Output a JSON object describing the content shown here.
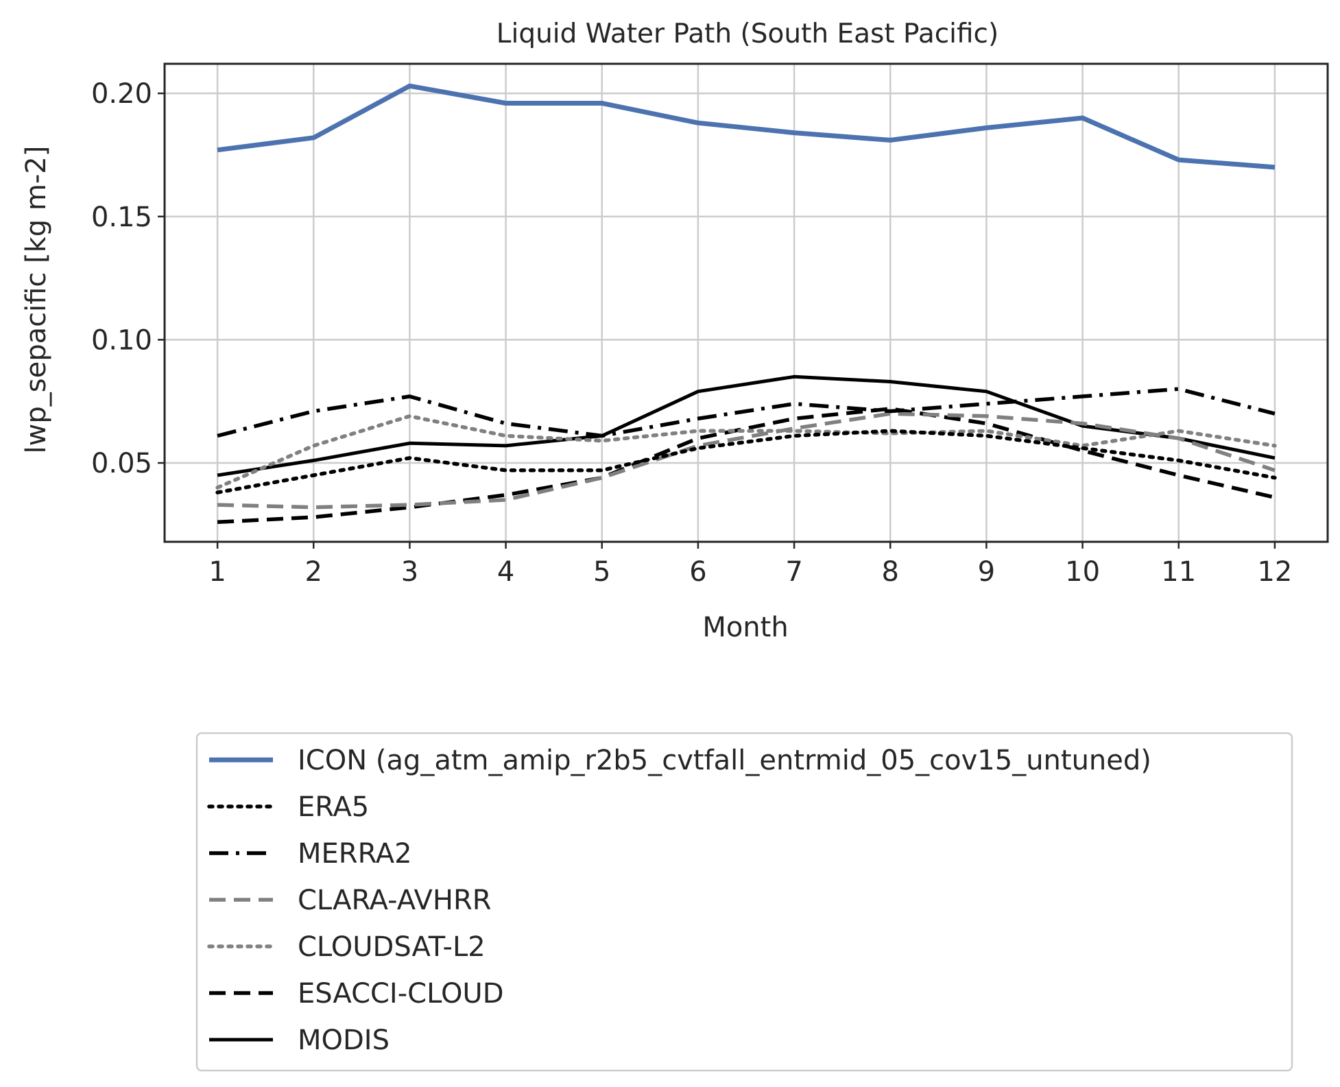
{
  "chart_data": {
    "type": "line",
    "title": "Liquid Water Path (South East Pacific)",
    "xlabel": "Month",
    "ylabel": "lwp_sepacific [kg m-2]",
    "x": [
      1,
      2,
      3,
      4,
      5,
      6,
      7,
      8,
      9,
      10,
      11,
      12
    ],
    "xlim": [
      0.45,
      12.55
    ],
    "ylim": [
      0.018,
      0.212
    ],
    "yticks": [
      0.05,
      0.1,
      0.15,
      0.2
    ],
    "ytick_labels": [
      "0.05",
      "0.10",
      "0.15",
      "0.20"
    ],
    "xtick_labels": [
      "1",
      "2",
      "3",
      "4",
      "5",
      "6",
      "7",
      "8",
      "9",
      "10",
      "11",
      "12"
    ],
    "grid": true,
    "legend_position": "below plot",
    "series": [
      {
        "name": "ICON (ag_atm_amip_r2b5_cvtfall_entrmid_05_cov15_untuned)",
        "color": "#4c72b0",
        "style": "solid-thick",
        "values": [
          0.177,
          0.182,
          0.203,
          0.196,
          0.196,
          0.188,
          0.184,
          0.181,
          0.186,
          0.19,
          0.173,
          0.17
        ]
      },
      {
        "name": "ERA5",
        "color": "#000000",
        "style": "dotted",
        "values": [
          0.038,
          0.045,
          0.052,
          0.047,
          0.047,
          0.056,
          0.061,
          0.063,
          0.061,
          0.056,
          0.051,
          0.044
        ]
      },
      {
        "name": "MERRA2",
        "color": "#000000",
        "style": "dashdot",
        "values": [
          0.061,
          0.071,
          0.077,
          0.066,
          0.061,
          0.068,
          0.074,
          0.071,
          0.074,
          0.077,
          0.08,
          0.07
        ]
      },
      {
        "name": "CLARA-AVHRR",
        "color": "#808080",
        "style": "dashed",
        "values": [
          0.033,
          0.032,
          0.033,
          0.035,
          0.044,
          0.057,
          0.064,
          0.07,
          0.069,
          0.066,
          0.06,
          0.047
        ]
      },
      {
        "name": "CLOUDSAT-L2",
        "color": "#808080",
        "style": "dotted",
        "values": [
          0.04,
          0.057,
          0.069,
          0.061,
          0.059,
          0.063,
          0.063,
          0.062,
          0.063,
          0.057,
          0.063,
          0.057
        ]
      },
      {
        "name": "ESACCI-CLOUD",
        "color": "#000000",
        "style": "dashed",
        "values": [
          0.026,
          0.028,
          0.032,
          0.037,
          0.044,
          0.06,
          0.068,
          0.072,
          0.066,
          0.055,
          0.045,
          0.036
        ]
      },
      {
        "name": "MODIS",
        "color": "#000000",
        "style": "solid",
        "values": [
          0.045,
          0.051,
          0.058,
          0.057,
          0.061,
          0.079,
          0.085,
          0.083,
          0.079,
          0.065,
          0.06,
          0.052
        ]
      }
    ]
  }
}
